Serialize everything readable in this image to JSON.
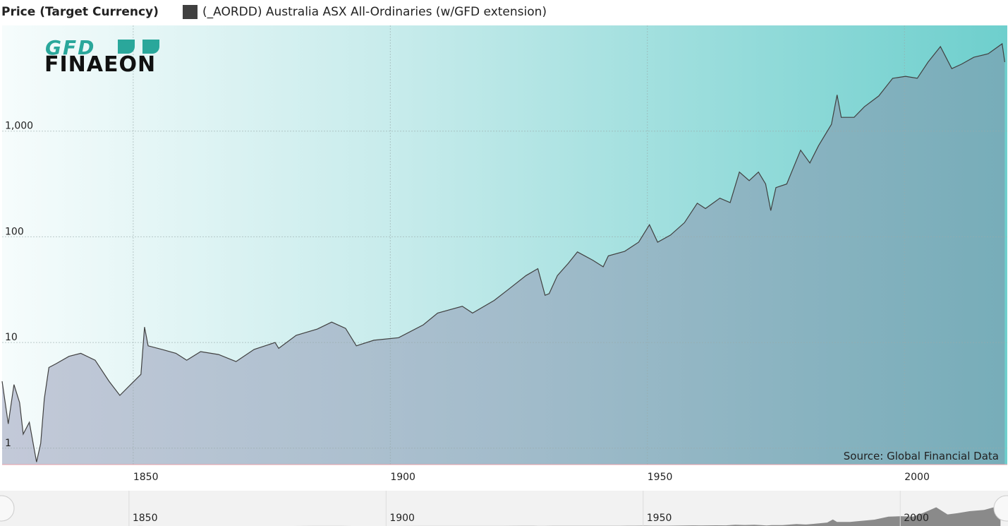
{
  "chart_data": {
    "type": "area",
    "legend_title": "Price (Target Currency)",
    "source": "Source: Global Financial Data",
    "logo": {
      "top": "GFD",
      "bottom": "FINAEON"
    },
    "log_scale": true,
    "grid": true,
    "xlim": [
      1824.5,
      2020
    ],
    "xticks": [
      1850,
      1900,
      1950,
      2000
    ],
    "ylim": [
      0.7,
      10000
    ],
    "yticks": [
      1,
      10,
      100,
      {
        "value": 1000,
        "label": "1,000"
      }
    ],
    "x": [
      1824.5,
      1825.7,
      1826.8,
      1827.9,
      1828.6,
      1829.8,
      1831.2,
      1832.0,
      1832.7,
      1833.6,
      1835.0,
      1837.5,
      1839.8,
      1842.6,
      1845.3,
      1847.4,
      1849.5,
      1851.5,
      1852.2,
      1852.9,
      1855.6,
      1858.3,
      1860.4,
      1863.1,
      1866.6,
      1870.0,
      1873.5,
      1877.6,
      1878.3,
      1881.7,
      1885.8,
      1888.6,
      1891.3,
      1893.4,
      1896.8,
      1901.6,
      1906.4,
      1909.2,
      1914.0,
      1916.0,
      1920.2,
      1922.9,
      1926.4,
      1928.7,
      1930.1,
      1930.9,
      1932.5,
      1934.6,
      1936.4,
      1939.4,
      1941.4,
      1942.4,
      1945.6,
      1948.3,
      1950.4,
      1952.0,
      1954.5,
      1957.2,
      1959.7,
      1961.3,
      1964.1,
      1966.1,
      1967.9,
      1969.8,
      1971.6,
      1973.0,
      1974.0,
      1975.0,
      1977.1,
      1979.8,
      1981.6,
      1983.3,
      1985.8,
      1986.9,
      1987.7,
      1990.2,
      1992.2,
      1995.0,
      1997.7,
      2000.2,
      2002.5,
      2004.6,
      2007.0,
      2009.2,
      2011.1,
      2013.5,
      2016.3,
      2019.0,
      2019.5
    ],
    "series": [
      {
        "name": "(_AORDD) Australia ASX All-Ordinaries (w/GFD extension)",
        "color": "#404040",
        "values": [
          4.3,
          1.7,
          4.0,
          2.7,
          1.36,
          1.76,
          0.74,
          1.11,
          2.93,
          5.8,
          6.3,
          7.4,
          7.9,
          6.8,
          4.3,
          3.16,
          4.0,
          5.0,
          14,
          9.3,
          8.6,
          7.9,
          6.8,
          8.2,
          7.7,
          6.6,
          8.6,
          10,
          8.8,
          11.7,
          13.4,
          15.6,
          13.6,
          9.3,
          10.5,
          11.1,
          14.7,
          19,
          22,
          19,
          25,
          31.6,
          43,
          50,
          28,
          29,
          43,
          56,
          72,
          60,
          52,
          66,
          73,
          89,
          130,
          89,
          104,
          136,
          208,
          185,
          232,
          211,
          410,
          340,
          410,
          316,
          177,
          292,
          316,
          660,
          500,
          730,
          1160,
          2200,
          1350,
          1350,
          1700,
          2150,
          3160,
          3300,
          3160,
          4500,
          6300,
          3900,
          4300,
          5000,
          5400,
          6700,
          4500
        ]
      }
    ]
  }
}
